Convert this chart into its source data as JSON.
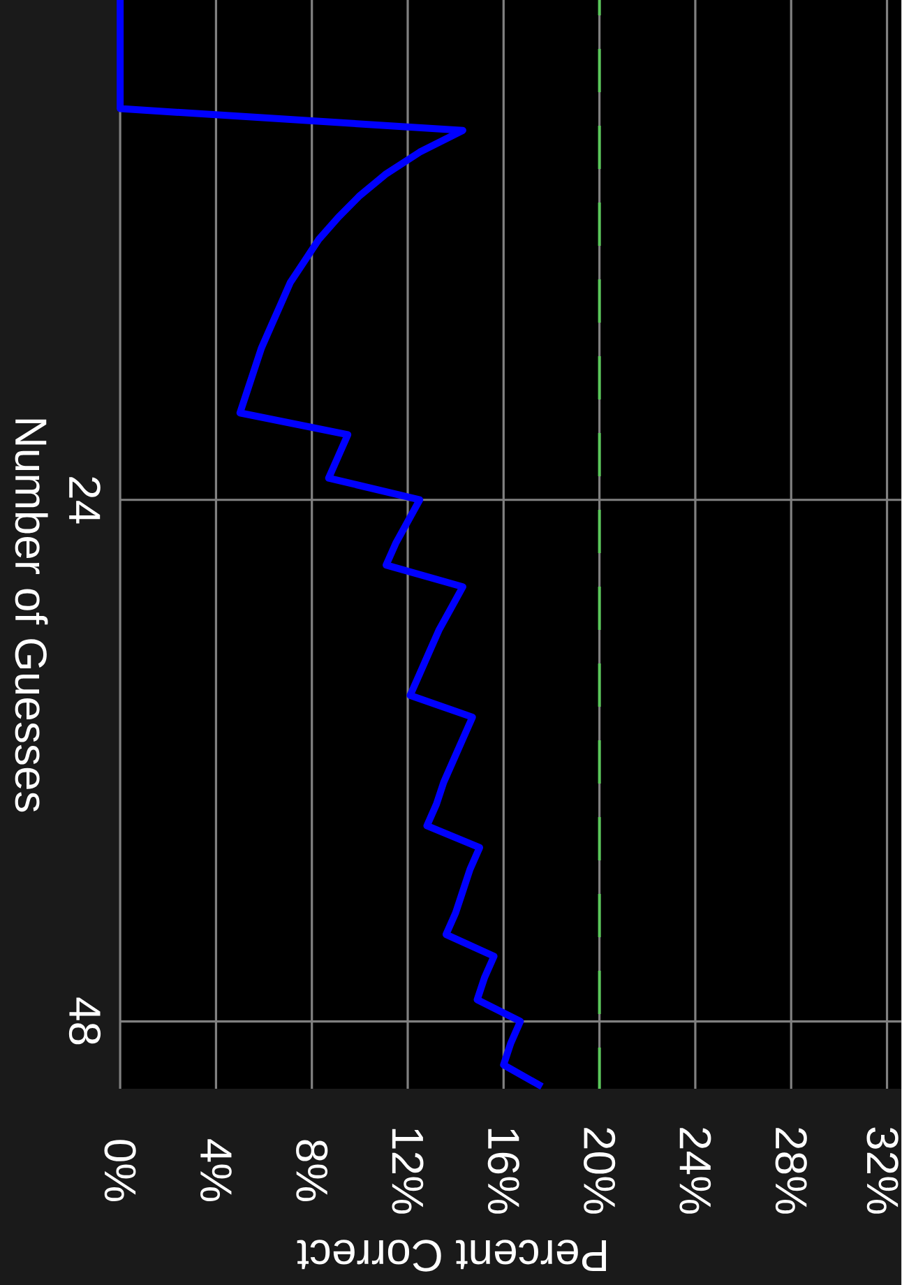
{
  "chart_data": {
    "type": "line",
    "xlabel": "Percent Correct",
    "ylabel": "Number of Guesses",
    "x": [
      0,
      0,
      14.3,
      12.5,
      11.1,
      10.0,
      9.1,
      8.3,
      7.7,
      7.1,
      6.7,
      6.3,
      5.9,
      5.6,
      5.3,
      5.0,
      9.5,
      9.1,
      8.7,
      12.5,
      12.0,
      11.5,
      11.1,
      14.3,
      13.8,
      13.3,
      12.9,
      12.5,
      12.1,
      14.7,
      14.3,
      13.9,
      13.5,
      13.2,
      12.8,
      15.0,
      14.6,
      14.3,
      14.0,
      13.6,
      15.6,
      15.2,
      14.9,
      16.7,
      16.3,
      16.0,
      17.6
    ],
    "values": [
      1,
      6,
      7,
      8,
      9,
      10,
      11,
      12,
      13,
      14,
      15,
      16,
      17,
      18,
      19,
      20,
      21,
      22,
      23,
      24,
      25,
      26,
      27,
      28,
      29,
      30,
      31,
      32,
      33,
      34,
      35,
      36,
      37,
      38,
      39,
      40,
      41,
      42,
      43,
      44,
      45,
      46,
      47,
      48,
      49,
      50,
      51
    ],
    "color": "#0000ff",
    "xlim": [
      0,
      32.6
    ],
    "ylim": [
      51.1,
      1
    ],
    "xticks": [
      {
        "value": 0,
        "label": "0%"
      },
      {
        "value": 4,
        "label": "4%"
      },
      {
        "value": 8,
        "label": "8%"
      },
      {
        "value": 12,
        "label": "12%"
      },
      {
        "value": 16,
        "label": "16%"
      },
      {
        "value": 20,
        "label": "20%"
      },
      {
        "value": 24,
        "label": "24%"
      },
      {
        "value": 28,
        "label": "28%"
      },
      {
        "value": 32,
        "label": "32%"
      }
    ],
    "yticks": [
      24,
      48
    ],
    "grid": true,
    "ref_lines": [
      {
        "axis": "x",
        "value": 20,
        "color": "#5bc85b",
        "line_style": "dashed"
      }
    ]
  }
}
